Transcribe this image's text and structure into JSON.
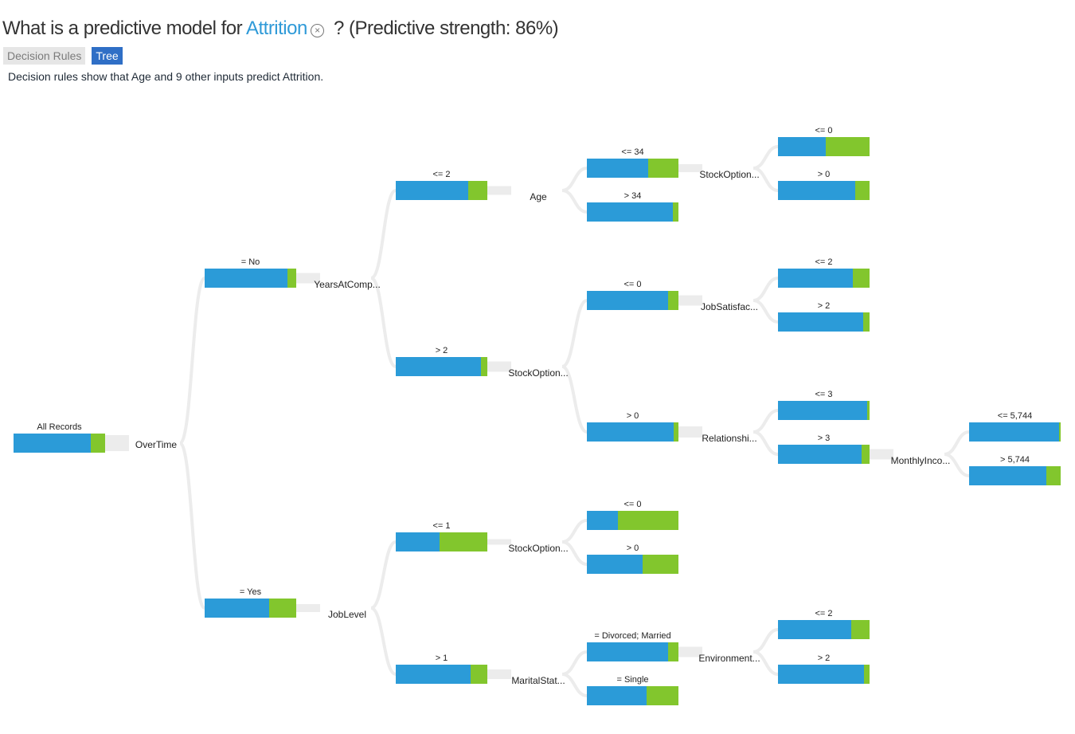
{
  "header": {
    "title_prefix": "What is a predictive model for",
    "target": "Attrition",
    "clear_glyph": "×",
    "title_suffix": "? (Predictive strength: 86%)"
  },
  "tabs": [
    {
      "label": "Decision Rules",
      "active": false
    },
    {
      "label": "Tree",
      "active": true
    }
  ],
  "subtitle": "Decision rules show that Age and 9 other inputs predict Attrition.",
  "colors": {
    "no": "#2b9bd8",
    "yes": "#82c62d",
    "link": "#ececec"
  },
  "tree": {
    "nodes": [
      {
        "id": "root",
        "label": "All Records",
        "split": "OverTime",
        "no_share": 0.84
      },
      {
        "id": "ot_no",
        "parent": "root",
        "label": "= No",
        "split": "YearsAtComp...",
        "no_share": 0.9
      },
      {
        "id": "ot_yes",
        "parent": "root",
        "label": "= Yes",
        "split": "JobLevel",
        "no_share": 0.7
      },
      {
        "id": "yac_le2",
        "parent": "ot_no",
        "label": "<= 2",
        "split": "Age",
        "no_share": 0.79
      },
      {
        "id": "yac_gt2",
        "parent": "ot_no",
        "label": "> 2",
        "split": "StockOption...",
        "no_share": 0.93
      },
      {
        "id": "age_le34",
        "parent": "yac_le2",
        "label": "<= 34",
        "split": "StockOption...",
        "no_share": 0.67
      },
      {
        "id": "age_gt34",
        "parent": "yac_le2",
        "label": "> 34",
        "no_share": 0.94
      },
      {
        "id": "so1_le0",
        "parent": "age_le34",
        "label": "<= 0",
        "no_share": 0.52
      },
      {
        "id": "so1_gt0",
        "parent": "age_le34",
        "label": "> 0",
        "no_share": 0.84
      },
      {
        "id": "so2_le0",
        "parent": "yac_gt2",
        "label": "<= 0",
        "split": "JobSatisfac...",
        "no_share": 0.89
      },
      {
        "id": "so2_gt0",
        "parent": "yac_gt2",
        "label": "> 0",
        "split": "Relationshi...",
        "no_share": 0.95
      },
      {
        "id": "js_le2",
        "parent": "so2_le0",
        "label": "<= 2",
        "no_share": 0.82
      },
      {
        "id": "js_gt2",
        "parent": "so2_le0",
        "label": "> 2",
        "no_share": 0.93
      },
      {
        "id": "rs_le3",
        "parent": "so2_gt0",
        "label": "<= 3",
        "no_share": 0.97
      },
      {
        "id": "rs_gt3",
        "parent": "so2_gt0",
        "label": "> 3",
        "split": "MonthlyInco...",
        "no_share": 0.91
      },
      {
        "id": "mi_le5744",
        "parent": "rs_gt3",
        "label": "<= 5,744",
        "no_share": 0.98
      },
      {
        "id": "mi_gt5744",
        "parent": "rs_gt3",
        "label": "> 5,744",
        "no_share": 0.84
      },
      {
        "id": "jl_le1",
        "parent": "ot_yes",
        "label": "<= 1",
        "split": "StockOption...",
        "no_share": 0.48
      },
      {
        "id": "jl_gt1",
        "parent": "ot_yes",
        "label": "> 1",
        "split": "MaritalStat...",
        "no_share": 0.82
      },
      {
        "id": "so3_le0",
        "parent": "jl_le1",
        "label": "<= 0",
        "no_share": 0.34
      },
      {
        "id": "so3_gt0",
        "parent": "jl_le1",
        "label": "> 0",
        "no_share": 0.61
      },
      {
        "id": "ms_div",
        "parent": "jl_gt1",
        "label": "= Divorced; Married",
        "split": "Environment...",
        "no_share": 0.89
      },
      {
        "id": "ms_single",
        "parent": "jl_gt1",
        "label": "= Single",
        "no_share": 0.65
      },
      {
        "id": "env_le2",
        "parent": "ms_div",
        "label": "<= 2",
        "no_share": 0.8
      },
      {
        "id": "env_gt2",
        "parent": "ms_div",
        "label": "> 2",
        "no_share": 0.94
      }
    ]
  }
}
